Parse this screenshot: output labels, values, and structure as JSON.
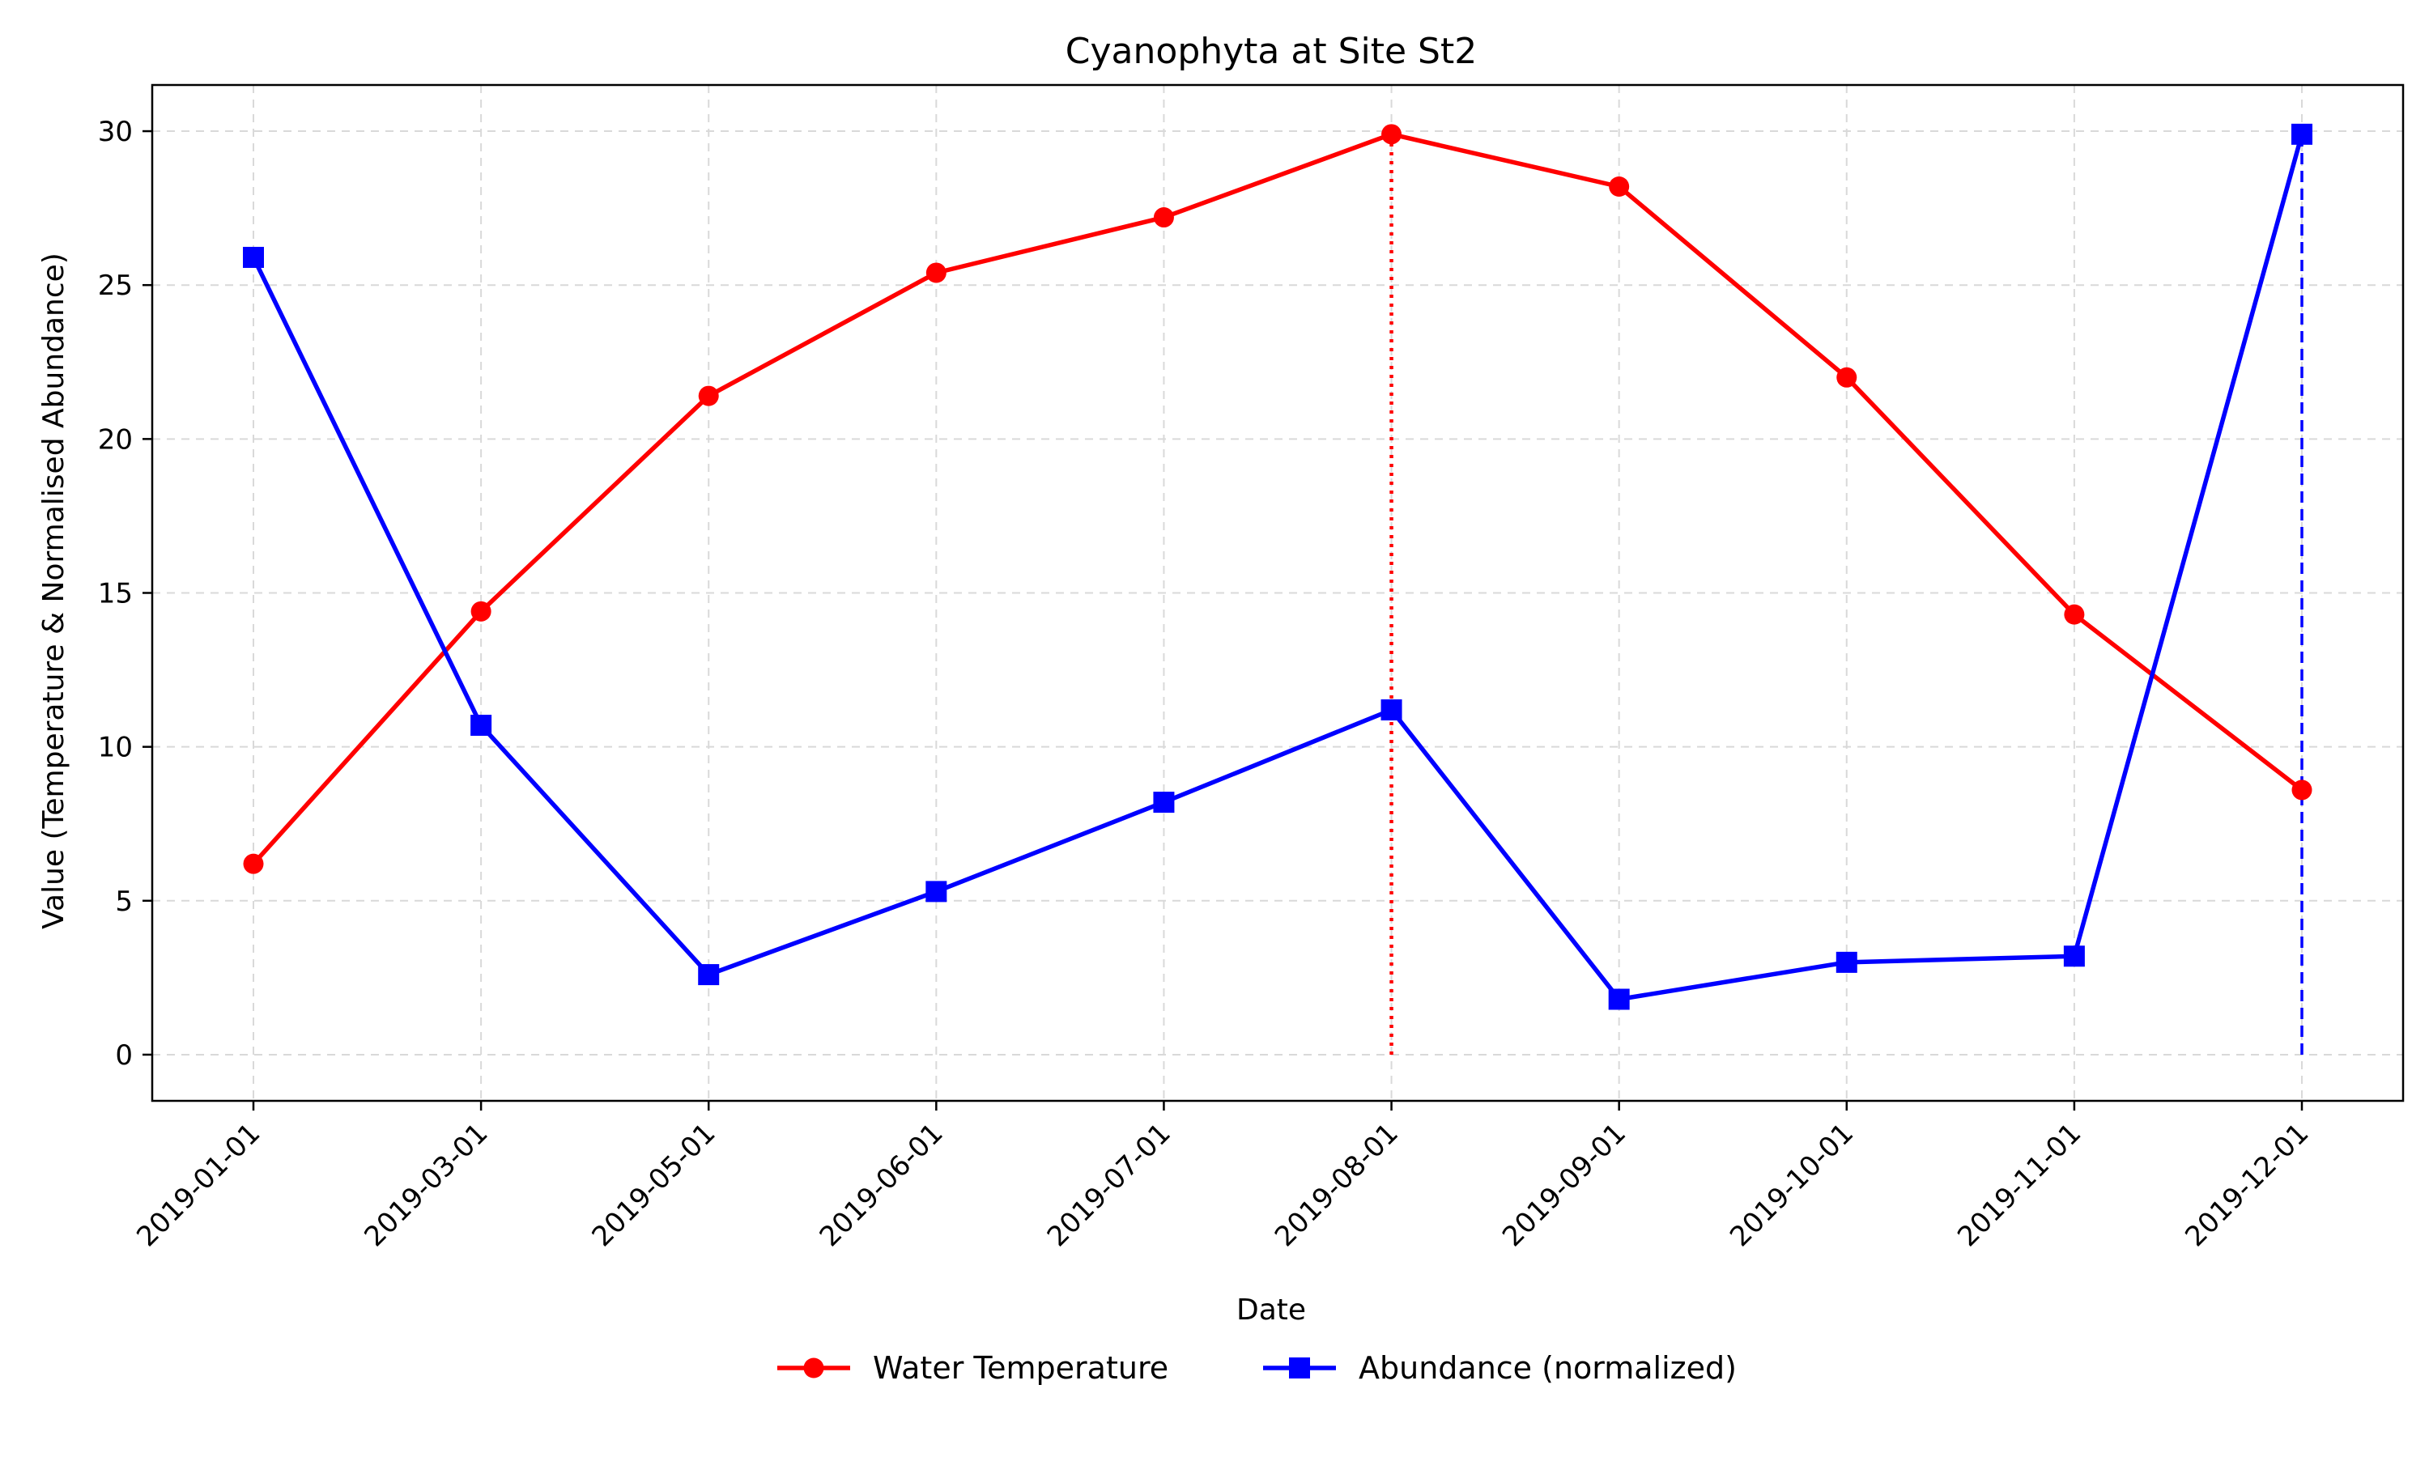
{
  "chart_data": {
    "type": "line",
    "title": "Cyanophyta at Site St2",
    "xlabel": "Date",
    "ylabel": "Value (Temperature & Normalised Abundance)",
    "categories": [
      "2019-01-01",
      "2019-03-01",
      "2019-05-01",
      "2019-06-01",
      "2019-07-01",
      "2019-08-01",
      "2019-09-01",
      "2019-10-01",
      "2019-11-01",
      "2019-12-01"
    ],
    "ylim": [
      -1.5,
      31.5
    ],
    "yticks": [
      0,
      5,
      10,
      15,
      20,
      25,
      30
    ],
    "grid": true,
    "legend_placement": "bottom-center",
    "series": [
      {
        "name": "Water Temperature",
        "color": "#ff0000",
        "marker": "circle",
        "values": [
          6.2,
          14.4,
          21.4,
          25.4,
          27.2,
          29.9,
          28.2,
          22.0,
          14.3,
          8.6
        ]
      },
      {
        "name": "Abundance (normalized)",
        "color": "#0000ff",
        "marker": "square",
        "values": [
          25.9,
          10.7,
          2.6,
          5.3,
          8.2,
          11.2,
          1.8,
          3.0,
          3.2,
          29.9
        ]
      }
    ],
    "reference_lines": [
      {
        "category": "2019-08-01",
        "from": 0,
        "to": 29.9,
        "color": "#ff0000",
        "style": "dotted"
      },
      {
        "category": "2019-12-01",
        "from": 0,
        "to": 29.9,
        "color": "#0000ff",
        "style": "dashed"
      }
    ]
  }
}
